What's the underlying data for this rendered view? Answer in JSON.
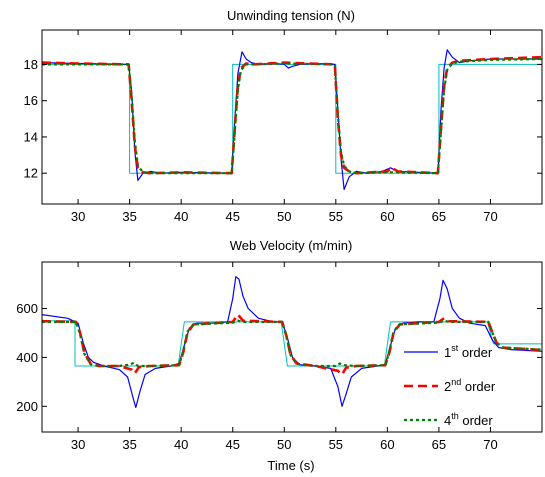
{
  "chart_data": [
    {
      "type": "line",
      "title": "Unwinding tension (N)",
      "xlabel": "",
      "ylabel": "",
      "xlim": [
        26.5,
        75
      ],
      "ylim": [
        10.3,
        19.9
      ],
      "xticks": [
        30,
        35,
        40,
        45,
        50,
        55,
        60,
        65,
        70
      ],
      "yticks": [
        12,
        14,
        16,
        18
      ],
      "grid": false,
      "series": [
        {
          "key": "reference",
          "color": "#00bfbf",
          "style": "solid",
          "x": [
            26.5,
            35,
            35,
            45,
            45,
            55,
            55,
            65,
            65,
            75
          ],
          "y": [
            18,
            18,
            12,
            12,
            18,
            18,
            12,
            12,
            18,
            18
          ]
        },
        {
          "key": "first-order",
          "color": "#0000ff",
          "style": "solid",
          "x": [
            26.5,
            30,
            34.9,
            35.2,
            35.5,
            35.8,
            36.3,
            37,
            38,
            40,
            44.9,
            45.2,
            45.5,
            45.9,
            46.3,
            46.8,
            47.5,
            49,
            50,
            50.4,
            50.8,
            51.5,
            53,
            54.9,
            55.2,
            55.5,
            55.8,
            56.3,
            57,
            58,
            59.5,
            60.3,
            61,
            63,
            64.9,
            65.2,
            65.5,
            65.8,
            66.3,
            67,
            68,
            70,
            75
          ],
          "y": [
            18.1,
            18.05,
            18.0,
            16.5,
            13.2,
            11.6,
            12.0,
            12.1,
            12.0,
            12.05,
            12.0,
            15.0,
            17.5,
            18.7,
            18.3,
            18.1,
            18.0,
            18.05,
            18.0,
            17.8,
            17.9,
            18.0,
            18.05,
            18.0,
            15.5,
            12.8,
            11.1,
            11.8,
            12.1,
            12.0,
            12.1,
            12.3,
            12.1,
            12.05,
            12.0,
            15.5,
            17.8,
            18.8,
            18.4,
            18.1,
            18.2,
            18.3,
            18.3
          ]
        },
        {
          "key": "second-order",
          "color": "#ff0000",
          "style": "dashed",
          "x": [
            26.5,
            30,
            34.9,
            35.2,
            35.5,
            35.8,
            36.3,
            37,
            40,
            44.9,
            45.2,
            45.5,
            45.8,
            46.3,
            47,
            50,
            54.9,
            55.2,
            55.5,
            55.8,
            56.3,
            57,
            60,
            60.4,
            61,
            64.9,
            65.2,
            65.5,
            65.8,
            66.3,
            67,
            70,
            75
          ],
          "y": [
            18.1,
            18.05,
            18.0,
            16.0,
            13.5,
            12.3,
            12.05,
            12.0,
            12.05,
            12.0,
            14.5,
            16.8,
            17.8,
            18.05,
            18.0,
            18.1,
            18.0,
            15.0,
            13.0,
            12.3,
            12.1,
            12.0,
            12.1,
            12.3,
            12.1,
            12.0,
            14.5,
            16.8,
            17.8,
            18.1,
            18.2,
            18.3,
            18.4
          ]
        },
        {
          "key": "fourth-order",
          "color": "#008000",
          "style": "dotted",
          "x": [
            26.5,
            30,
            34.9,
            35.2,
            35.5,
            35.8,
            36.3,
            37,
            40,
            44.9,
            45.2,
            45.5,
            45.8,
            46.3,
            47,
            50,
            54.9,
            55.2,
            55.5,
            55.8,
            56.3,
            57,
            60,
            64.9,
            65.2,
            65.5,
            65.8,
            66.3,
            67,
            70,
            75
          ],
          "y": [
            18.0,
            18.0,
            18.0,
            16.2,
            13.8,
            12.4,
            12.05,
            12.0,
            12.0,
            12.0,
            14.3,
            16.6,
            17.7,
            18.0,
            18.0,
            18.05,
            18.0,
            15.2,
            13.2,
            12.4,
            12.1,
            12.0,
            12.05,
            12.0,
            14.3,
            16.6,
            17.7,
            18.05,
            18.15,
            18.25,
            18.3
          ]
        }
      ]
    },
    {
      "type": "line",
      "title": "Web Velocity (m/min)",
      "xlabel": "Time (s)",
      "ylabel": "",
      "xlim": [
        26.5,
        75
      ],
      "ylim": [
        95,
        790
      ],
      "xticks": [
        30,
        35,
        40,
        45,
        50,
        55,
        60,
        65,
        70
      ],
      "yticks": [
        200,
        400,
        600
      ],
      "grid": false,
      "legend": {
        "position": "bottom-right",
        "entries": [
          {
            "key": "first-order",
            "base": "1",
            "sup": "st",
            "rest": " order"
          },
          {
            "key": "second-order",
            "base": "2",
            "sup": "nd",
            "rest": " order"
          },
          {
            "key": "fourth-order",
            "base": "4",
            "sup": "th",
            "rest": " order"
          }
        ]
      },
      "series": [
        {
          "key": "reference",
          "color": "#00bfbf",
          "style": "solid",
          "x": [
            26.5,
            29.7,
            29.7,
            30.3,
            30.3,
            39.7,
            39.7,
            40.3,
            40.3,
            49.7,
            49.7,
            50.3,
            50.3,
            59.7,
            59.7,
            60.3,
            60.3,
            69.7,
            69.7,
            70.3,
            70.3,
            75
          ],
          "y": [
            550,
            550,
            365,
            365,
            365,
            365,
            365,
            545,
            545,
            545,
            545,
            365,
            365,
            365,
            365,
            545,
            545,
            545,
            545,
            455,
            455,
            455
          ]
        },
        {
          "key": "first-order",
          "color": "#0000ff",
          "style": "solid",
          "x": [
            26.5,
            29,
            30,
            30.5,
            31,
            31.5,
            32.5,
            34,
            34.8,
            35.3,
            35.6,
            36,
            36.5,
            37.5,
            39,
            39.8,
            40.3,
            40.8,
            41.5,
            43,
            44.5,
            45,
            45.3,
            45.6,
            46,
            46.5,
            47.5,
            49,
            49.8,
            50.3,
            50.8,
            51.5,
            53,
            54.5,
            55.2,
            55.6,
            56,
            56.5,
            57.5,
            59,
            59.8,
            60.3,
            60.8,
            61.5,
            63,
            64.5,
            65.1,
            65.4,
            65.8,
            66.3,
            67,
            68,
            69.5,
            70.2,
            70.8,
            72,
            75
          ],
          "y": [
            575,
            560,
            540,
            460,
            400,
            380,
            365,
            350,
            320,
            240,
            195,
            260,
            330,
            355,
            365,
            375,
            450,
            520,
            540,
            540,
            545,
            640,
            730,
            720,
            650,
            600,
            560,
            545,
            545,
            480,
            400,
            370,
            365,
            355,
            280,
            200,
            250,
            320,
            355,
            365,
            370,
            450,
            520,
            540,
            545,
            545,
            640,
            715,
            680,
            600,
            560,
            540,
            530,
            470,
            440,
            432,
            425
          ]
        },
        {
          "key": "second-order",
          "color": "#ff0000",
          "style": "dashed",
          "x": [
            26.5,
            29.8,
            30.2,
            30.6,
            31.2,
            32,
            34,
            35.2,
            35.5,
            35.9,
            37,
            39.8,
            40.2,
            40.6,
            41.2,
            43,
            45,
            45.5,
            46,
            49.8,
            50.2,
            50.6,
            51.2,
            53,
            55.2,
            55.6,
            56,
            57,
            59.8,
            60.2,
            60.6,
            61.2,
            63,
            65,
            65.5,
            66,
            69.8,
            70.2,
            70.6,
            71.2,
            75
          ],
          "y": [
            548,
            545,
            500,
            420,
            375,
            365,
            365,
            350,
            335,
            360,
            365,
            368,
            420,
            500,
            535,
            540,
            545,
            575,
            550,
            545,
            490,
            410,
            375,
            365,
            345,
            330,
            358,
            365,
            368,
            420,
            500,
            535,
            540,
            545,
            560,
            548,
            545,
            500,
            460,
            440,
            430
          ]
        },
        {
          "key": "fourth-order",
          "color": "#008000",
          "style": "dotted",
          "x": [
            26.5,
            29.8,
            30.2,
            30.6,
            31.2,
            32,
            34,
            35,
            35.4,
            35.8,
            37,
            39.8,
            40.2,
            40.6,
            41.2,
            43,
            45,
            45.5,
            46,
            49.8,
            50.2,
            50.6,
            51.2,
            53,
            55,
            55.4,
            55.8,
            57,
            59.8,
            60.2,
            60.6,
            61.2,
            63,
            65,
            65.5,
            66,
            69.8,
            70.2,
            70.6,
            71.2,
            75
          ],
          "y": [
            545,
            545,
            495,
            415,
            372,
            365,
            365,
            370,
            378,
            365,
            365,
            368,
            425,
            505,
            535,
            538,
            542,
            550,
            545,
            545,
            490,
            410,
            374,
            365,
            365,
            375,
            368,
            365,
            368,
            425,
            505,
            535,
            538,
            542,
            550,
            545,
            545,
            500,
            460,
            440,
            432
          ]
        }
      ]
    }
  ]
}
